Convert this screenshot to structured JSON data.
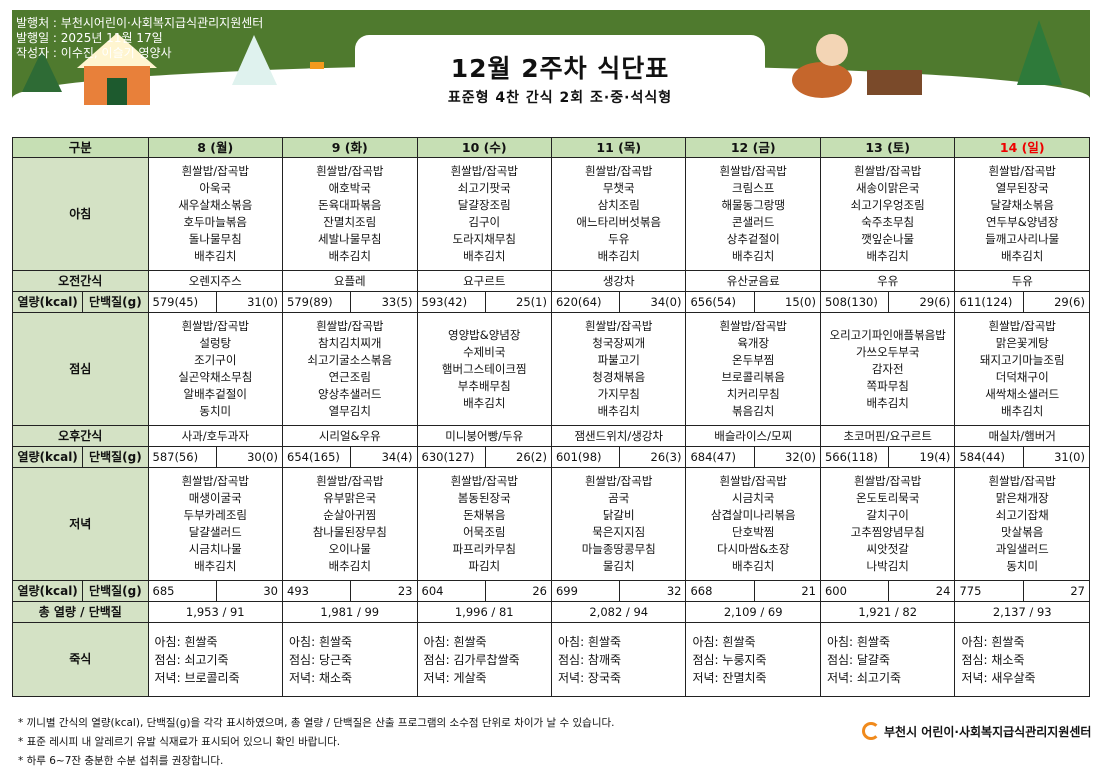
{
  "header": {
    "publisher": "발행처 : 부천시어린이·사회복지급식관리지원센터",
    "date": "발행일 : 2025년 11월 17일",
    "author": "작성자 : 이수진, 이슬기 영양사",
    "title": "12월 2주차 식단표",
    "subtitle": "표준형 4찬 간식 2회 조·중·석식형",
    "theme_color": "#4f7a2e"
  },
  "table": {
    "label_header": "구분",
    "row_labels": {
      "breakfast": "아침",
      "am_snack": "오전간식",
      "kcal": "열량(kcal)",
      "protein": "단백질(g)",
      "lunch": "점심",
      "pm_snack": "오후간식",
      "dinner": "저녁",
      "total": "총 열량 / 단백질",
      "juk": "죽식"
    },
    "days": [
      {
        "label": "8 (월)",
        "breakfast": "흰쌀밥/잡곡밥\n아욱국\n새우살채소볶음\n호두마늘볶음\n돌나물무침\n배추김치",
        "am_snack": "오렌지주스",
        "b_kcal": "579(45)",
        "b_prot": "31(0)",
        "lunch": "흰쌀밥/잡곡밥\n설렁탕\n조기구이\n실곤약채소무침\n알배추겉절이\n동치미",
        "pm_snack": "사과/호두과자",
        "l_kcal": "587(56)",
        "l_prot": "30(0)",
        "dinner": "흰쌀밥/잡곡밥\n매생이굴국\n두부카레조림\n달걀샐러드\n시금치나물\n배추김치",
        "d_kcal": "685",
        "d_prot": "30",
        "total": "1,953  /  91",
        "juk": "아침: 흰쌀죽\n점심: 쇠고기죽\n저녁: 브로콜리죽"
      },
      {
        "label": "9 (화)",
        "breakfast": "흰쌀밥/잡곡밥\n애호박국\n돈육대파볶음\n잔멸치조림\n세발나물무침\n배추김치",
        "am_snack": "요플레",
        "b_kcal": "579(89)",
        "b_prot": "33(5)",
        "lunch": "흰쌀밥/잡곡밥\n참치김치찌개\n쇠고기굴소스볶음\n연근조림\n양상추샐러드\n열무김치",
        "pm_snack": "시리얼&우유",
        "l_kcal": "654(165)",
        "l_prot": "34(4)",
        "dinner": "흰쌀밥/잡곡밥\n유부맑은국\n순살아귀찜\n참나물된장무침\n오이나물\n배추김치",
        "d_kcal": "493",
        "d_prot": "23",
        "total": "1,981  /  99",
        "juk": "아침: 흰쌀죽\n점심: 당근죽\n저녁: 채소죽"
      },
      {
        "label": "10 (수)",
        "breakfast": "흰쌀밥/잡곡밥\n쇠고기팟국\n달걀장조림\n김구이\n도라지채무침\n배추김치",
        "am_snack": "요구르트",
        "b_kcal": "593(42)",
        "b_prot": "25(1)",
        "lunch": "영양밥&양념장\n수제비국\n햄버그스테이크찜\n부추배무침\n배추김치",
        "pm_snack": "미니붕어빵/두유",
        "l_kcal": "630(127)",
        "l_prot": "26(2)",
        "dinner": "흰쌀밥/잡곡밥\n봄동된장국\n돈채볶음\n어묵조림\n파프리카무침\n파김치",
        "d_kcal": "604",
        "d_prot": "26",
        "total": "1,996  /  81",
        "juk": "아침: 흰쌀죽\n점심: 김가루찹쌀죽\n저녁: 게살죽"
      },
      {
        "label": "11 (목)",
        "breakfast": "흰쌀밥/잡곡밥\n무챗국\n삼치조림\n애느타리버섯볶음\n두유\n배추김치",
        "am_snack": "생강차",
        "b_kcal": "620(64)",
        "b_prot": "34(0)",
        "lunch": "흰쌀밥/잡곡밥\n청국장찌개\n파불고기\n청경채볶음\n가지무침\n배추김치",
        "pm_snack": "잼샌드위치/생강차",
        "l_kcal": "601(98)",
        "l_prot": "26(3)",
        "dinner": "흰쌀밥/잡곡밥\n곰국\n닭갈비\n묵은지지짐\n마늘종땅콩무침\n물김치",
        "d_kcal": "699",
        "d_prot": "32",
        "total": "2,082  /  94",
        "juk": "아침: 흰쌀죽\n점심: 참깨죽\n저녁: 장국죽"
      },
      {
        "label": "12 (금)",
        "breakfast": "흰쌀밥/잡곡밥\n크림스프\n해물동그랑땡\n콘샐러드\n상추겉절이\n배추김치",
        "am_snack": "유산균음료",
        "b_kcal": "656(54)",
        "b_prot": "15(0)",
        "lunch": "흰쌀밥/잡곡밥\n육개장\n온두부찜\n브로콜리볶음\n치커리무침\n볶음김치",
        "pm_snack": "배슬라이스/모찌",
        "l_kcal": "684(47)",
        "l_prot": "32(0)",
        "dinner": "흰쌀밥/잡곡밥\n시금치국\n삼겹살미나리볶음\n단호박찜\n다시마쌈&초장\n배추김치",
        "d_kcal": "668",
        "d_prot": "21",
        "total": "2,109  /  69",
        "juk": "아침: 흰쌀죽\n점심: 누룽지죽\n저녁: 잔멸치죽"
      },
      {
        "label": "13 (토)",
        "breakfast": "흰쌀밥/잡곡밥\n새송이맑은국\n쇠고기우엉조림\n숙주초무침\n깻잎순나물\n배추김치",
        "am_snack": "우유",
        "b_kcal": "508(130)",
        "b_prot": "29(6)",
        "lunch": "오리고기파인애플볶음밥\n가쓰오두부국\n감자전\n쪽파무침\n배추김치",
        "pm_snack": "초코머핀/요구르트",
        "l_kcal": "566(118)",
        "l_prot": "19(4)",
        "dinner": "흰쌀밥/잡곡밥\n온도토리묵국\n갈치구이\n고추찜양념무침\n씨앗젓갈\n나박김치",
        "d_kcal": "600",
        "d_prot": "24",
        "total": "1,921  /  82",
        "juk": "아침: 흰쌀죽\n점심: 달걀죽\n저녁: 쇠고기죽"
      },
      {
        "label": "14 (일)",
        "sunday": true,
        "breakfast": "흰쌀밥/잡곡밥\n열무된장국\n달걀채소볶음\n연두부&양념장\n들깨고사리나물\n배추김치",
        "am_snack": "두유",
        "b_kcal": "611(124)",
        "b_prot": "29(6)",
        "lunch": "흰쌀밥/잡곡밥\n맑은꽃게탕\n돼지고기마늘조림\n더덕채구이\n새싹채소샐러드\n배추김치",
        "pm_snack": "매실차/햄버거",
        "l_kcal": "584(44)",
        "l_prot": "31(0)",
        "dinner": "흰쌀밥/잡곡밥\n맑은채개장\n쇠고기잡채\n맛살볶음\n과일샐러드\n동치미",
        "d_kcal": "775",
        "d_prot": "27",
        "total": "2,137  /  93",
        "juk": "아침: 흰쌀죽\n점심: 채소죽\n저녁: 새우살죽"
      }
    ]
  },
  "notes": [
    "* 끼니별 간식의 열량(kcal), 단백질(g)을 각각 표시하였으며, 총 열량 / 단백질은 산출 프로그램의 소수점 단위로 차이가 날 수 있습니다.",
    "* 표준 레시피 내 알레르기 유발 식재료가 표시되어 있으니 확인 바랍니다.",
    "* 하루 6~7잔 충분한 수분 섭취를 권장합니다."
  ],
  "footer": {
    "logo_text": "부천시 어린이·사회복지급식관리지원센터",
    "logo_color": "#f08a1c"
  }
}
